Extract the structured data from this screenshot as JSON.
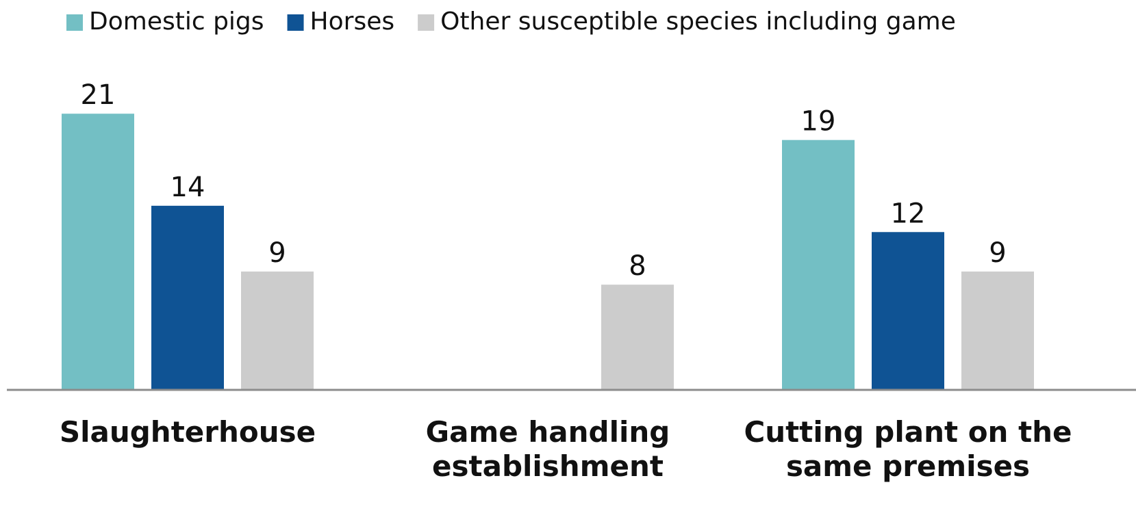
{
  "chart_data": {
    "type": "bar",
    "categories": [
      "Slaughterhouse",
      "Game handling establishment",
      "Cutting plant on the same premises"
    ],
    "series": [
      {
        "name": "Domestic pigs",
        "color": "#73bfc4",
        "values": [
          21,
          null,
          19
        ]
      },
      {
        "name": "Horses",
        "color": "#0f5394",
        "values": [
          14,
          null,
          12
        ]
      },
      {
        "name": "Other susceptible species including game",
        "color": "#cccccc",
        "values": [
          9,
          8,
          9
        ]
      }
    ],
    "ylim": [
      0,
      22
    ],
    "legend": "top"
  }
}
